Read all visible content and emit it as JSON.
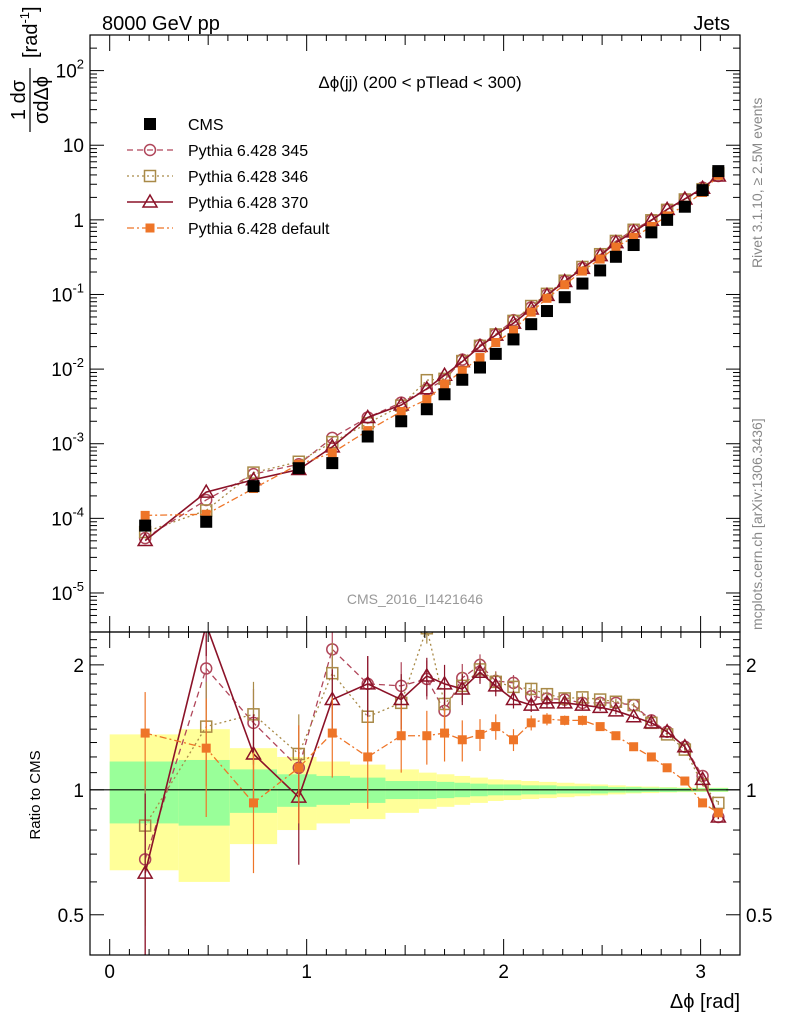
{
  "header": {
    "energy_label": "8000 GeV pp",
    "process_label": "Jets",
    "rivet_label": "Rivet 3.1.10, ≥ 2.5M events",
    "source_label": "mcplots.cern.ch [arXiv:1306.3436]",
    "analysis_label": "CMS_2016_I1421646"
  },
  "chart_data": {
    "type": "line",
    "title": "Δϕ(jj) (200 < pTlead <  300)",
    "xlabel": "Δϕ [rad]",
    "ylabel": "1 dσ / σ dΔϕ [rad⁻¹]",
    "ylabel_parts": {
      "num": "1 dσ",
      "den": "σdΔϕ",
      "unit": "[rad",
      "unit_exp": "-1",
      "unit_close": "]"
    },
    "ratio_ylabel": "Ratio to CMS",
    "xlim": [
      -0.1,
      3.2
    ],
    "ylim": [
      3e-06,
      300
    ],
    "yscale": "log",
    "ratio_ylim": [
      0.4,
      2.4
    ],
    "x_ticks": [
      "0",
      "1",
      "2",
      "3"
    ],
    "y_ticks": [
      {
        "base": "10",
        "exp": "-5"
      },
      {
        "base": "10",
        "exp": "-4"
      },
      {
        "base": "10",
        "exp": "-3"
      },
      {
        "base": "10",
        "exp": "-2"
      },
      {
        "base": "10",
        "exp": "-1"
      },
      {
        "base": "1",
        "exp": ""
      },
      {
        "base": "10",
        "exp": ""
      },
      {
        "base": "10",
        "exp": "2"
      }
    ],
    "ratio_ticks": [
      "0.5",
      "1",
      "2"
    ],
    "legend_position": "top-left",
    "x": [
      0.18,
      0.49,
      0.73,
      0.96,
      1.13,
      1.31,
      1.48,
      1.61,
      1.7,
      1.79,
      1.88,
      1.96,
      2.05,
      2.14,
      2.22,
      2.31,
      2.4,
      2.49,
      2.57,
      2.66,
      2.75,
      2.83,
      2.92,
      3.01,
      3.09
    ],
    "bin_edges": [
      0.0,
      0.35,
      0.61,
      0.85,
      1.05,
      1.22,
      1.4,
      1.57,
      1.66,
      1.75,
      1.83,
      1.92,
      2.0,
      2.09,
      2.18,
      2.27,
      2.36,
      2.44,
      2.53,
      2.62,
      2.7,
      2.79,
      2.88,
      2.97,
      3.05,
      3.14
    ],
    "series": [
      {
        "name": "CMS",
        "style": "data",
        "color": "#000000",
        "marker": "square-filled",
        "values": [
          8e-05,
          9e-05,
          0.00027,
          0.00047,
          0.00055,
          0.00125,
          0.002,
          0.0029,
          0.0046,
          0.0072,
          0.0105,
          0.016,
          0.025,
          0.04,
          0.06,
          0.092,
          0.14,
          0.21,
          0.32,
          0.46,
          0.68,
          1.0,
          1.5,
          2.5,
          4.5
        ],
        "ratio_band_inner": [
          0.17,
          0.18,
          0.12,
          0.09,
          0.08,
          0.07,
          0.05,
          0.05,
          0.045,
          0.04,
          0.035,
          0.03,
          0.03,
          0.025,
          0.025,
          0.02,
          0.02,
          0.02,
          0.015,
          0.015,
          0.012,
          0.012,
          0.01,
          0.01,
          0.01
        ],
        "ratio_band_outer": [
          0.36,
          0.4,
          0.26,
          0.2,
          0.17,
          0.15,
          0.12,
          0.1,
          0.09,
          0.08,
          0.07,
          0.06,
          0.055,
          0.05,
          0.045,
          0.04,
          0.035,
          0.03,
          0.025,
          0.02,
          0.018,
          0.015,
          0.013,
          0.012,
          0.012
        ]
      },
      {
        "name": "Pythia 6.428 345",
        "style": "dashed",
        "color": "#b0465a",
        "marker": "circle-open",
        "ratio": [
          0.68,
          1.96,
          1.45,
          1.13,
          2.18,
          1.8,
          1.78,
          1.85,
          1.55,
          1.86,
          2.0,
          1.83,
          1.81,
          1.68,
          1.66,
          1.65,
          1.62,
          1.62,
          1.62,
          1.6,
          1.47,
          1.38,
          1.27,
          1.08,
          0.86
        ],
        "ratio_err": [
          0.35,
          0.4,
          0.3,
          0.3,
          0.35,
          0.3,
          0.25,
          0.2,
          0.2,
          0.15,
          0.12,
          0.1,
          0.08,
          0.06,
          0.05,
          0.04,
          0.04,
          0.03,
          0.03,
          0.02,
          0.02,
          0.02,
          0.02,
          0.01,
          0.01
        ]
      },
      {
        "name": "Pythia 6.428 346",
        "style": "dotted",
        "color": "#a98a48",
        "marker": "square-open",
        "ratio": [
          0.82,
          1.42,
          1.52,
          1.22,
          1.91,
          1.5,
          1.62,
          2.45,
          1.61,
          1.78,
          1.95,
          1.82,
          1.77,
          1.75,
          1.7,
          1.66,
          1.67,
          1.65,
          1.63,
          1.6,
          1.45,
          1.36,
          1.25,
          1.03,
          0.93
        ],
        "ratio_err": [
          0.35,
          0.4,
          0.3,
          0.3,
          0.35,
          0.3,
          0.25,
          0.2,
          0.2,
          0.15,
          0.12,
          0.1,
          0.08,
          0.06,
          0.05,
          0.04,
          0.04,
          0.03,
          0.03,
          0.02,
          0.02,
          0.02,
          0.02,
          0.01,
          0.01
        ]
      },
      {
        "name": "Pythia 6.428 370",
        "style": "solid",
        "color": "#8b1228",
        "marker": "triangle-open",
        "ratio": [
          0.63,
          2.5,
          1.22,
          0.96,
          1.65,
          1.8,
          1.65,
          1.88,
          1.8,
          1.75,
          1.92,
          1.78,
          1.65,
          1.6,
          1.62,
          1.62,
          1.6,
          1.58,
          1.55,
          1.5,
          1.45,
          1.38,
          1.27,
          1.06,
          0.86
        ],
        "ratio_err": [
          0.35,
          0.4,
          0.3,
          0.3,
          0.3,
          0.3,
          0.25,
          0.2,
          0.2,
          0.15,
          0.12,
          0.1,
          0.08,
          0.06,
          0.05,
          0.04,
          0.04,
          0.03,
          0.03,
          0.02,
          0.02,
          0.02,
          0.02,
          0.01,
          0.01
        ]
      },
      {
        "name": "Pythia 6.428 default",
        "style": "dashdot",
        "color": "#ee7528",
        "marker": "square-filled-small",
        "ratio": [
          1.37,
          1.26,
          0.93,
          1.13,
          1.37,
          1.2,
          1.35,
          1.35,
          1.37,
          1.32,
          1.36,
          1.42,
          1.32,
          1.45,
          1.48,
          1.47,
          1.47,
          1.42,
          1.35,
          1.27,
          1.2,
          1.13,
          1.05,
          0.93,
          0.88
        ],
        "ratio_err": [
          0.35,
          0.4,
          0.3,
          0.3,
          0.3,
          0.3,
          0.25,
          0.2,
          0.2,
          0.15,
          0.12,
          0.1,
          0.08,
          0.06,
          0.05,
          0.04,
          0.04,
          0.03,
          0.03,
          0.02,
          0.02,
          0.02,
          0.02,
          0.01,
          0.01
        ]
      }
    ]
  }
}
